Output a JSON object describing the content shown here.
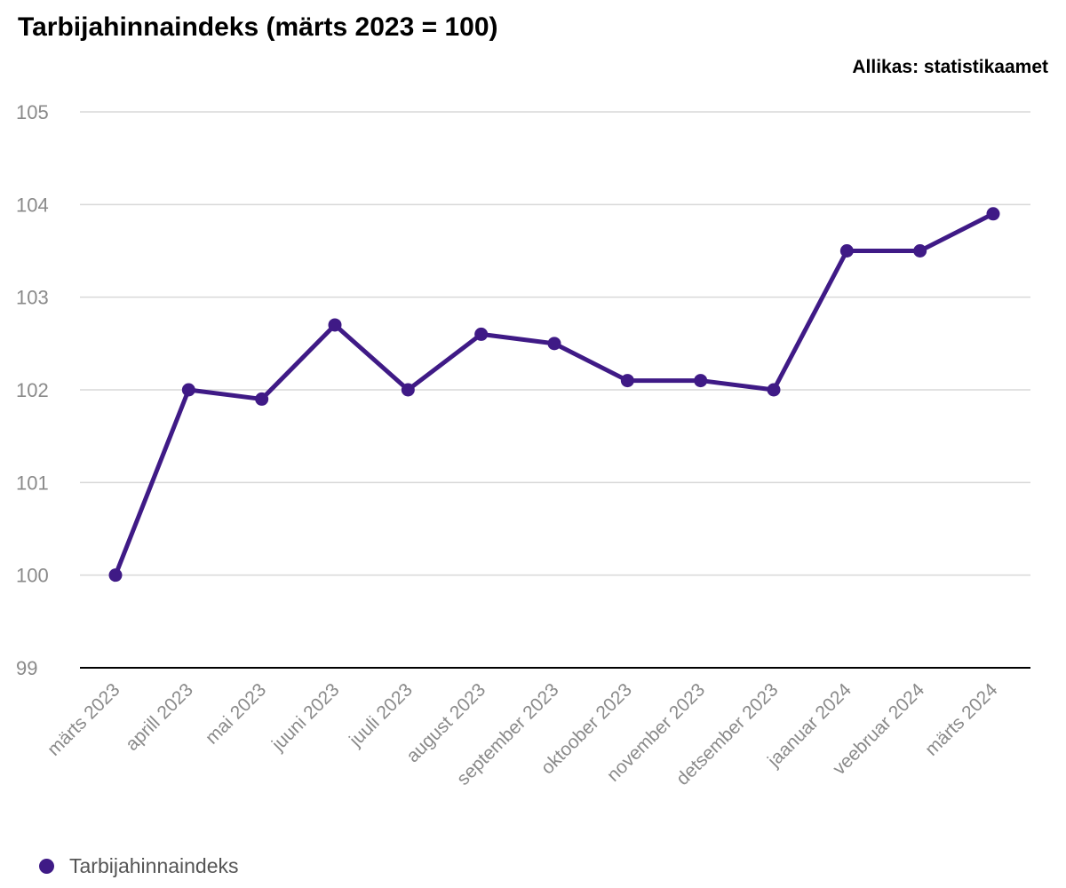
{
  "chart_data": {
    "type": "line",
    "title": "Tarbijahinnaindeks (märts 2023 = 100)",
    "source": "Allikas: statistikaamet",
    "categories": [
      "märts 2023",
      "aprill 2023",
      "mai 2023",
      "juuni 2023",
      "juuli 2023",
      "august 2023",
      "september 2023",
      "oktoober 2023",
      "november 2023",
      "detsember 2023",
      "jaanuar 2024",
      "veebruar 2024",
      "märts 2024"
    ],
    "series": [
      {
        "name": "Tarbijahinnaindeks",
        "color": "#3f1a86",
        "values": [
          100.0,
          102.0,
          101.9,
          102.7,
          102.0,
          102.6,
          102.5,
          102.1,
          102.1,
          102.0,
          103.5,
          103.5,
          103.9
        ]
      }
    ],
    "ylim": [
      99,
      105
    ],
    "yticks": [
      "99",
      "100",
      "101",
      "102",
      "103",
      "104",
      "105"
    ],
    "xlabel": "",
    "ylabel": "",
    "grid": true,
    "legend_position": "bottom-left"
  }
}
